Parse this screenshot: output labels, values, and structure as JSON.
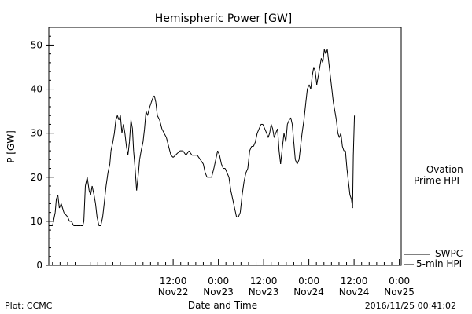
{
  "chart_data": {
    "type": "line",
    "title": "Hemispheric Power [GW]",
    "ylabel": "P [GW]",
    "xlabel": "Date and Time",
    "ylim": [
      0,
      54
    ],
    "y_ticks": [
      0,
      10,
      20,
      30,
      40,
      50
    ],
    "x_unit": "hours since 2016-11-21 00:00 UT",
    "xlim": [
      3,
      96.5
    ],
    "x_ticks": [
      {
        "x": 36,
        "line1": "12:00",
        "line2": "Nov22"
      },
      {
        "x": 48,
        "line1": "0:00",
        "line2": "Nov23"
      },
      {
        "x": 60,
        "line1": "12:00",
        "line2": "Nov23"
      },
      {
        "x": 72,
        "line1": "0:00",
        "line2": "Nov24"
      },
      {
        "x": 84,
        "line1": "12:00",
        "line2": "Nov24"
      },
      {
        "x": 96,
        "line1": "0:00",
        "line2": "Nov25"
      }
    ],
    "grid": false,
    "series": [
      {
        "name": "SWPC 5-min HPI",
        "color": "#000000",
        "style": "solid",
        "points": [
          [
            3,
            9
          ],
          [
            4,
            9
          ],
          [
            4.7,
            12
          ],
          [
            5,
            15
          ],
          [
            5.4,
            16
          ],
          [
            5.8,
            13
          ],
          [
            6.3,
            14
          ],
          [
            7,
            12
          ],
          [
            8,
            11
          ],
          [
            8.5,
            10
          ],
          [
            9,
            10
          ],
          [
            9.6,
            9
          ],
          [
            10.5,
            9
          ],
          [
            11,
            9
          ],
          [
            11.5,
            9
          ],
          [
            12,
            9
          ],
          [
            12.3,
            10
          ],
          [
            12.7,
            18
          ],
          [
            13.2,
            20
          ],
          [
            13.7,
            17
          ],
          [
            14.1,
            16
          ],
          [
            14.5,
            18
          ],
          [
            15,
            16
          ],
          [
            15.4,
            14
          ],
          [
            15.8,
            11
          ],
          [
            16.3,
            9
          ],
          [
            16.8,
            9
          ],
          [
            17.3,
            11
          ],
          [
            17.7,
            14
          ],
          [
            18.2,
            18
          ],
          [
            18.7,
            21
          ],
          [
            19.2,
            23
          ],
          [
            19.5,
            26
          ],
          [
            20,
            28
          ],
          [
            20.4,
            30
          ],
          [
            20.8,
            33
          ],
          [
            21.2,
            34
          ],
          [
            21.6,
            33
          ],
          [
            22,
            34
          ],
          [
            22.4,
            30
          ],
          [
            22.8,
            32
          ],
          [
            23.2,
            30
          ],
          [
            23.6,
            27
          ],
          [
            24,
            25
          ],
          [
            24.4,
            28
          ],
          [
            24.8,
            33
          ],
          [
            25.2,
            31
          ],
          [
            25.5,
            26
          ],
          [
            25.9,
            22
          ],
          [
            26.3,
            17
          ],
          [
            26.8,
            21
          ],
          [
            27.1,
            24
          ],
          [
            27.5,
            26
          ],
          [
            28,
            28
          ],
          [
            28.4,
            31
          ],
          [
            28.8,
            35
          ],
          [
            29.2,
            34
          ],
          [
            29.8,
            36
          ],
          [
            30.2,
            37
          ],
          [
            30.6,
            38
          ],
          [
            31,
            38.5
          ],
          [
            31.4,
            37
          ],
          [
            31.8,
            34
          ],
          [
            32.4,
            33
          ],
          [
            33,
            31
          ],
          [
            33.6,
            30
          ],
          [
            34.2,
            29
          ],
          [
            34.8,
            27
          ],
          [
            35.4,
            25
          ],
          [
            36,
            24.5
          ],
          [
            36.6,
            25
          ],
          [
            37.2,
            25.5
          ],
          [
            37.8,
            26
          ],
          [
            38.6,
            26
          ],
          [
            39.4,
            25
          ],
          [
            40.2,
            26
          ],
          [
            41,
            25
          ],
          [
            41.8,
            25
          ],
          [
            42.4,
            25
          ],
          [
            43.2,
            24
          ],
          [
            44,
            23
          ],
          [
            44.5,
            21
          ],
          [
            45,
            20
          ],
          [
            45.6,
            20
          ],
          [
            46.2,
            20
          ],
          [
            46.8,
            22
          ],
          [
            47.3,
            24
          ],
          [
            47.8,
            26
          ],
          [
            48.3,
            25
          ],
          [
            48.8,
            23
          ],
          [
            49.3,
            22
          ],
          [
            49.8,
            22
          ],
          [
            50.3,
            21
          ],
          [
            50.8,
            20
          ],
          [
            51.3,
            17
          ],
          [
            51.8,
            15
          ],
          [
            52.3,
            13
          ],
          [
            52.8,
            11
          ],
          [
            53.3,
            11
          ],
          [
            53.8,
            12
          ],
          [
            54.3,
            16
          ],
          [
            54.8,
            19
          ],
          [
            55.3,
            21
          ],
          [
            55.8,
            22
          ],
          [
            56.3,
            26
          ],
          [
            56.8,
            27
          ],
          [
            57.3,
            27
          ],
          [
            57.8,
            28
          ],
          [
            58.3,
            30
          ],
          [
            58.8,
            31
          ],
          [
            59.3,
            32
          ],
          [
            59.8,
            32
          ],
          [
            60.3,
            31
          ],
          [
            60.8,
            30
          ],
          [
            61.2,
            29
          ],
          [
            61.6,
            30
          ],
          [
            62,
            32
          ],
          [
            62.4,
            31
          ],
          [
            62.8,
            29
          ],
          [
            63.2,
            30
          ],
          [
            63.7,
            31
          ],
          [
            64.1,
            26
          ],
          [
            64.5,
            23
          ],
          [
            65,
            27
          ],
          [
            65.4,
            30
          ],
          [
            65.9,
            28
          ],
          [
            66.3,
            32
          ],
          [
            66.8,
            33
          ],
          [
            67.2,
            33.5
          ],
          [
            67.6,
            32
          ],
          [
            68,
            28
          ],
          [
            68.4,
            24
          ],
          [
            68.9,
            23
          ],
          [
            69.4,
            24
          ],
          [
            69.8,
            27
          ],
          [
            70.2,
            30
          ],
          [
            70.7,
            33
          ],
          [
            71.2,
            37
          ],
          [
            71.6,
            40
          ],
          [
            72.1,
            41
          ],
          [
            72.5,
            40
          ],
          [
            72.9,
            43
          ],
          [
            73.3,
            45
          ],
          [
            73.7,
            44
          ],
          [
            74.1,
            41
          ],
          [
            74.5,
            43
          ],
          [
            74.9,
            45
          ],
          [
            75.3,
            47
          ],
          [
            75.7,
            46
          ],
          [
            76.1,
            49
          ],
          [
            76.5,
            48
          ],
          [
            76.9,
            49
          ],
          [
            77.3,
            46
          ],
          [
            77.7,
            43
          ],
          [
            78.1,
            40
          ],
          [
            78.5,
            37
          ],
          [
            78.9,
            35
          ],
          [
            79.3,
            33
          ],
          [
            79.7,
            30
          ],
          [
            80.1,
            29
          ],
          [
            80.5,
            30
          ],
          [
            80.9,
            27
          ],
          [
            81.3,
            26
          ],
          [
            81.7,
            26
          ],
          [
            82.1,
            22
          ],
          [
            82.5,
            19
          ],
          [
            82.9,
            16
          ],
          [
            83.3,
            15
          ],
          [
            83.6,
            13
          ],
          [
            83.8,
            25
          ],
          [
            84.1,
            34
          ]
        ]
      },
      {
        "name": "Ovation Prime HPI",
        "color": "#1f5fbf",
        "style": "dotted",
        "points": []
      }
    ],
    "legend": [
      {
        "line1": "— Ovation",
        "line2": "Prime HPI",
        "color": "#1f5fbf"
      },
      {
        "line1": "SWPC",
        "line2": "5-min HPI",
        "color": "#000000"
      }
    ],
    "footer_left": "Plot: CCMC",
    "footer_right": "2016/11/25 00:41:02"
  }
}
